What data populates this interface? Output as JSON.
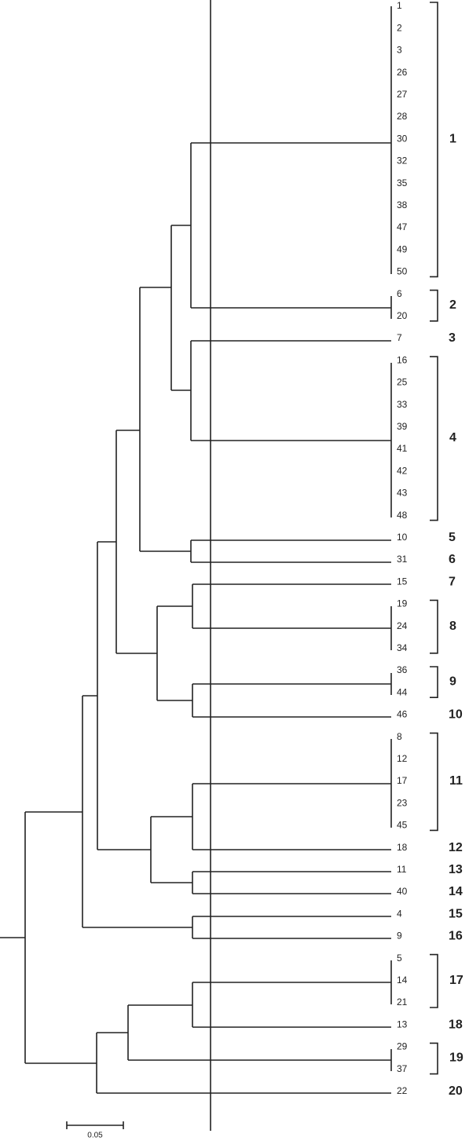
{
  "groups": [
    {
      "label": "1",
      "leaves": [
        "1",
        "2",
        "3",
        "26",
        "27",
        "28",
        "30",
        "32",
        "35",
        "38",
        "47",
        "49",
        "50"
      ]
    },
    {
      "label": "2",
      "leaves": [
        "6",
        "20"
      ]
    },
    {
      "label": "3",
      "leaves": [
        "7"
      ]
    },
    {
      "label": "4",
      "leaves": [
        "16",
        "25",
        "33",
        "39",
        "41",
        "42",
        "43",
        "48"
      ]
    },
    {
      "label": "5",
      "leaves": [
        "10"
      ]
    },
    {
      "label": "6",
      "leaves": [
        "31"
      ]
    },
    {
      "label": "7",
      "leaves": [
        "15"
      ]
    },
    {
      "label": "8",
      "leaves": [
        "19",
        "24",
        "34"
      ]
    },
    {
      "label": "9",
      "leaves": [
        "36",
        "44"
      ]
    },
    {
      "label": "10",
      "leaves": [
        "46"
      ]
    },
    {
      "label": "11",
      "leaves": [
        "8",
        "12",
        "17",
        "23",
        "45"
      ]
    },
    {
      "label": "12",
      "leaves": [
        "18"
      ]
    },
    {
      "label": "13",
      "leaves": [
        "11"
      ]
    },
    {
      "label": "14",
      "leaves": [
        "40"
      ]
    },
    {
      "label": "15",
      "leaves": [
        "4"
      ]
    },
    {
      "label": "16",
      "leaves": [
        "9"
      ]
    },
    {
      "label": "17",
      "leaves": [
        "5",
        "14",
        "21"
      ]
    },
    {
      "label": "18",
      "leaves": [
        "13"
      ]
    },
    {
      "label": "19",
      "leaves": [
        "29",
        "37"
      ]
    },
    {
      "label": "20",
      "leaves": [
        "22"
      ]
    }
  ],
  "scale_bar": {
    "label": "0.05"
  }
}
